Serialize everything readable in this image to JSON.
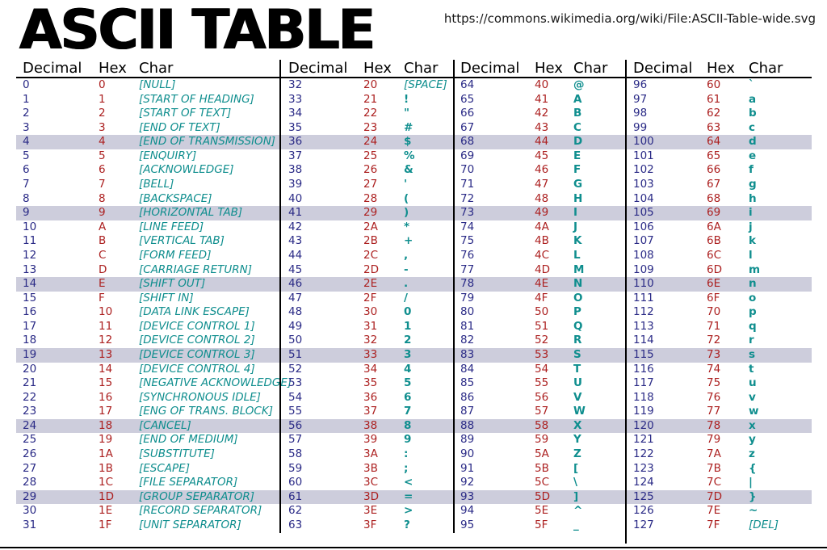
{
  "page": {
    "title": "ASCII TABLE",
    "url": "https://commons.wikimedia.org/wiki/File:ASCII-Table-wide.svg"
  },
  "colors": {
    "decimal": "#2A2A86",
    "hex": "#AC2020",
    "char": "#0F8E8E",
    "highlight": "#CDCDDC"
  },
  "table": {
    "column_headers": [
      "Decimal",
      "Hex",
      "Char"
    ],
    "char_type_legend": {
      "c": "control (bracketed, italic)",
      "p": "printable (bold)"
    },
    "groups": [
      {
        "rows": [
          [
            "0",
            "0",
            "[NULL]",
            "c"
          ],
          [
            "1",
            "1",
            "[START OF HEADING]",
            "c"
          ],
          [
            "2",
            "2",
            "[START OF TEXT]",
            "c"
          ],
          [
            "3",
            "3",
            "[END OF TEXT]",
            "c"
          ],
          [
            "4",
            "4",
            "[END OF TRANSMISSION]",
            "c"
          ],
          [
            "5",
            "5",
            "[ENQUIRY]",
            "c"
          ],
          [
            "6",
            "6",
            "[ACKNOWLEDGE]",
            "c"
          ],
          [
            "7",
            "7",
            "[BELL]",
            "c"
          ],
          [
            "8",
            "8",
            "[BACKSPACE]",
            "c"
          ],
          [
            "9",
            "9",
            "[HORIZONTAL TAB]",
            "c"
          ],
          [
            "10",
            "A",
            "[LINE FEED]",
            "c"
          ],
          [
            "11",
            "B",
            "[VERTICAL TAB]",
            "c"
          ],
          [
            "12",
            "C",
            "[FORM FEED]",
            "c"
          ],
          [
            "13",
            "D",
            "[CARRIAGE RETURN]",
            "c"
          ],
          [
            "14",
            "E",
            "[SHIFT OUT]",
            "c"
          ],
          [
            "15",
            "F",
            "[SHIFT IN]",
            "c"
          ],
          [
            "16",
            "10",
            "[DATA LINK ESCAPE]",
            "c"
          ],
          [
            "17",
            "11",
            "[DEVICE CONTROL 1]",
            "c"
          ],
          [
            "18",
            "12",
            "[DEVICE CONTROL 2]",
            "c"
          ],
          [
            "19",
            "13",
            "[DEVICE CONTROL 3]",
            "c"
          ],
          [
            "20",
            "14",
            "[DEVICE CONTROL 4]",
            "c"
          ],
          [
            "21",
            "15",
            "[NEGATIVE ACKNOWLEDGE]",
            "c"
          ],
          [
            "22",
            "16",
            "[SYNCHRONOUS IDLE]",
            "c"
          ],
          [
            "23",
            "17",
            "[ENG OF TRANS. BLOCK]",
            "c"
          ],
          [
            "24",
            "18",
            "[CANCEL]",
            "c"
          ],
          [
            "25",
            "19",
            "[END OF MEDIUM]",
            "c"
          ],
          [
            "26",
            "1A",
            "[SUBSTITUTE]",
            "c"
          ],
          [
            "27",
            "1B",
            "[ESCAPE]",
            "c"
          ],
          [
            "28",
            "1C",
            "[FILE SEPARATOR]",
            "c"
          ],
          [
            "29",
            "1D",
            "[GROUP SEPARATOR]",
            "c"
          ],
          [
            "30",
            "1E",
            "[RECORD SEPARATOR]",
            "c"
          ],
          [
            "31",
            "1F",
            "[UNIT SEPARATOR]",
            "c"
          ]
        ]
      },
      {
        "rows": [
          [
            "32",
            "20",
            "[SPACE]",
            "c"
          ],
          [
            "33",
            "21",
            "!",
            "p"
          ],
          [
            "34",
            "22",
            "\"",
            "p"
          ],
          [
            "35",
            "23",
            "#",
            "p"
          ],
          [
            "36",
            "24",
            "$",
            "p"
          ],
          [
            "37",
            "25",
            "%",
            "p"
          ],
          [
            "38",
            "26",
            "&",
            "p"
          ],
          [
            "39",
            "27",
            "'",
            "p"
          ],
          [
            "40",
            "28",
            "(",
            "p"
          ],
          [
            "41",
            "29",
            ")",
            "p"
          ],
          [
            "42",
            "2A",
            "*",
            "p"
          ],
          [
            "43",
            "2B",
            "+",
            "p"
          ],
          [
            "44",
            "2C",
            ",",
            "p"
          ],
          [
            "45",
            "2D",
            "-",
            "p"
          ],
          [
            "46",
            "2E",
            ".",
            "p"
          ],
          [
            "47",
            "2F",
            "/",
            "p"
          ],
          [
            "48",
            "30",
            "0",
            "p"
          ],
          [
            "49",
            "31",
            "1",
            "p"
          ],
          [
            "50",
            "32",
            "2",
            "p"
          ],
          [
            "51",
            "33",
            "3",
            "p"
          ],
          [
            "52",
            "34",
            "4",
            "p"
          ],
          [
            "53",
            "35",
            "5",
            "p"
          ],
          [
            "54",
            "36",
            "6",
            "p"
          ],
          [
            "55",
            "37",
            "7",
            "p"
          ],
          [
            "56",
            "38",
            "8",
            "p"
          ],
          [
            "57",
            "39",
            "9",
            "p"
          ],
          [
            "58",
            "3A",
            ":",
            "p"
          ],
          [
            "59",
            "3B",
            ";",
            "p"
          ],
          [
            "60",
            "3C",
            "<",
            "p"
          ],
          [
            "61",
            "3D",
            "=",
            "p"
          ],
          [
            "62",
            "3E",
            ">",
            "p"
          ],
          [
            "63",
            "3F",
            "?",
            "p"
          ]
        ]
      },
      {
        "rows": [
          [
            "64",
            "40",
            "@",
            "p"
          ],
          [
            "65",
            "41",
            "A",
            "p"
          ],
          [
            "66",
            "42",
            "B",
            "p"
          ],
          [
            "67",
            "43",
            "C",
            "p"
          ],
          [
            "68",
            "44",
            "D",
            "p"
          ],
          [
            "69",
            "45",
            "E",
            "p"
          ],
          [
            "70",
            "46",
            "F",
            "p"
          ],
          [
            "71",
            "47",
            "G",
            "p"
          ],
          [
            "72",
            "48",
            "H",
            "p"
          ],
          [
            "73",
            "49",
            "I",
            "p"
          ],
          [
            "74",
            "4A",
            "J",
            "p"
          ],
          [
            "75",
            "4B",
            "K",
            "p"
          ],
          [
            "76",
            "4C",
            "L",
            "p"
          ],
          [
            "77",
            "4D",
            "M",
            "p"
          ],
          [
            "78",
            "4E",
            "N",
            "p"
          ],
          [
            "79",
            "4F",
            "O",
            "p"
          ],
          [
            "80",
            "50",
            "P",
            "p"
          ],
          [
            "81",
            "51",
            "Q",
            "p"
          ],
          [
            "82",
            "52",
            "R",
            "p"
          ],
          [
            "83",
            "53",
            "S",
            "p"
          ],
          [
            "84",
            "54",
            "T",
            "p"
          ],
          [
            "85",
            "55",
            "U",
            "p"
          ],
          [
            "86",
            "56",
            "V",
            "p"
          ],
          [
            "87",
            "57",
            "W",
            "p"
          ],
          [
            "88",
            "58",
            "X",
            "p"
          ],
          [
            "89",
            "59",
            "Y",
            "p"
          ],
          [
            "90",
            "5A",
            "Z",
            "p"
          ],
          [
            "91",
            "5B",
            "[",
            "p"
          ],
          [
            "92",
            "5C",
            "\\",
            "p"
          ],
          [
            "93",
            "5D",
            "]",
            "p"
          ],
          [
            "94",
            "5E",
            "^",
            "p"
          ],
          [
            "95",
            "5F",
            "_",
            "p"
          ]
        ]
      },
      {
        "rows": [
          [
            "96",
            "60",
            "`",
            "p"
          ],
          [
            "97",
            "61",
            "a",
            "p"
          ],
          [
            "98",
            "62",
            "b",
            "p"
          ],
          [
            "99",
            "63",
            "c",
            "p"
          ],
          [
            "100",
            "64",
            "d",
            "p"
          ],
          [
            "101",
            "65",
            "e",
            "p"
          ],
          [
            "102",
            "66",
            "f",
            "p"
          ],
          [
            "103",
            "67",
            "g",
            "p"
          ],
          [
            "104",
            "68",
            "h",
            "p"
          ],
          [
            "105",
            "69",
            "i",
            "p"
          ],
          [
            "106",
            "6A",
            "j",
            "p"
          ],
          [
            "107",
            "6B",
            "k",
            "p"
          ],
          [
            "108",
            "6C",
            "l",
            "p"
          ],
          [
            "109",
            "6D",
            "m",
            "p"
          ],
          [
            "110",
            "6E",
            "n",
            "p"
          ],
          [
            "111",
            "6F",
            "o",
            "p"
          ],
          [
            "112",
            "70",
            "p",
            "p"
          ],
          [
            "113",
            "71",
            "q",
            "p"
          ],
          [
            "114",
            "72",
            "r",
            "p"
          ],
          [
            "115",
            "73",
            "s",
            "p"
          ],
          [
            "116",
            "74",
            "t",
            "p"
          ],
          [
            "117",
            "75",
            "u",
            "p"
          ],
          [
            "118",
            "76",
            "v",
            "p"
          ],
          [
            "119",
            "77",
            "w",
            "p"
          ],
          [
            "120",
            "78",
            "x",
            "p"
          ],
          [
            "121",
            "79",
            "y",
            "p"
          ],
          [
            "122",
            "7A",
            "z",
            "p"
          ],
          [
            "123",
            "7B",
            "{",
            "p"
          ],
          [
            "124",
            "7C",
            "|",
            "p"
          ],
          [
            "125",
            "7D",
            "}",
            "p"
          ],
          [
            "126",
            "7E",
            "~",
            "p"
          ],
          [
            "127",
            "7F",
            "[DEL]",
            "c"
          ]
        ]
      }
    ]
  }
}
